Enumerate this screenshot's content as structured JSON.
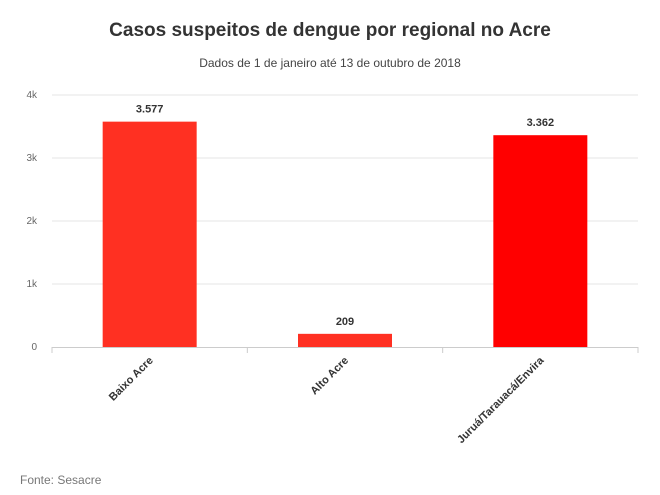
{
  "chart_data": {
    "type": "bar",
    "title": "Casos suspeitos de dengue por regional no Acre",
    "subtitle": "Dados de 1 de janeiro até 13 de outubro de 2018",
    "categories": [
      "Baixo Acre",
      "Alto Acre",
      "Juruá/Tarauacá/Envira"
    ],
    "values": [
      3577,
      209,
      3362
    ],
    "data_labels": [
      "3.577",
      "209",
      "3.362"
    ],
    "bar_colors": [
      "#ff3022",
      "#ff3022",
      "#ff0000"
    ],
    "ylim": [
      0,
      4000
    ],
    "yticks": [
      0,
      1000,
      2000,
      3000,
      4000
    ],
    "ytick_labels": [
      "0",
      "1k",
      "2k",
      "3k",
      "4k"
    ],
    "grid": true,
    "source": "Fonte: Sesacre"
  }
}
